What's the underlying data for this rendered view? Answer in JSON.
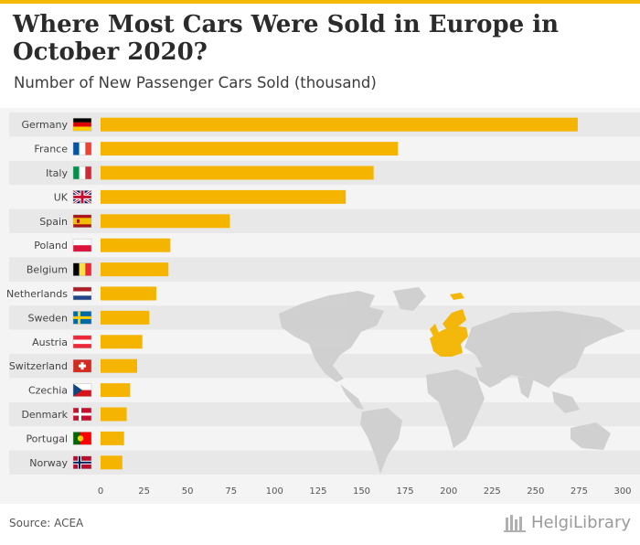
{
  "title": "Where Most Cars Were Sold in Europe in October 2020?",
  "subtitle": "Number of New Passenger Cars Sold (thousand)",
  "source": "Source: ACEA",
  "brand": "HelgiLibrary",
  "colors": {
    "bar": "#f5b400",
    "band": "#e8e8e8",
    "panel": "#f4f4f4",
    "map_land": "#cfcfcf",
    "map_highlight": "#f5b400"
  },
  "chart_data": {
    "type": "bar",
    "orientation": "horizontal",
    "categories": [
      "Germany",
      "France",
      "Italy",
      "UK",
      "Spain",
      "Poland",
      "Belgium",
      "Netherlands",
      "Sweden",
      "Austria",
      "Switzerland",
      "Czechia",
      "Denmark",
      "Portugal",
      "Norway"
    ],
    "values": [
      274.2,
      170.9,
      156.9,
      140.9,
      74.3,
      40.1,
      39.0,
      32.0,
      28.0,
      24.0,
      21.0,
      17.0,
      15.0,
      13.5,
      12.5
    ],
    "xticks": [
      "0",
      "25",
      "50",
      "75",
      "100",
      "125",
      "150",
      "175",
      "200",
      "225",
      "250",
      "275",
      "300"
    ],
    "xlim": [
      0,
      300
    ],
    "flags": [
      "germany-flag-icon",
      "france-flag-icon",
      "italy-flag-icon",
      "uk-flag-icon",
      "spain-flag-icon",
      "poland-flag-icon",
      "belgium-flag-icon",
      "netherlands-flag-icon",
      "sweden-flag-icon",
      "austria-flag-icon",
      "switzerland-flag-icon",
      "czechia-flag-icon",
      "denmark-flag-icon",
      "portugal-flag-icon",
      "norway-flag-icon"
    ],
    "grid": false
  }
}
